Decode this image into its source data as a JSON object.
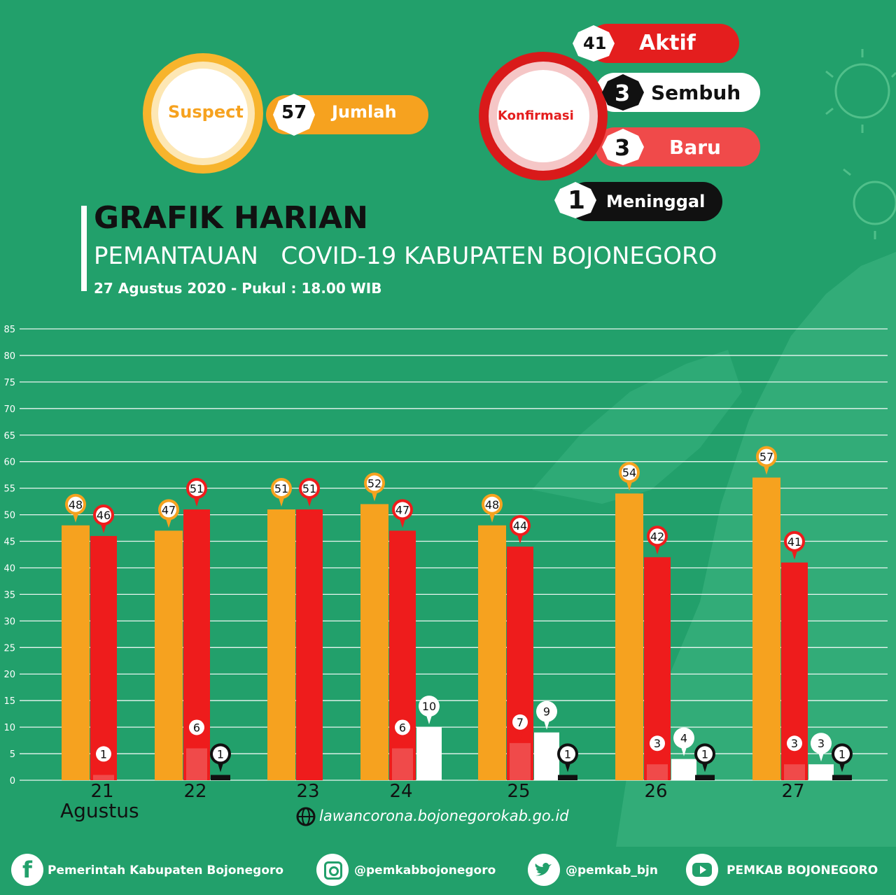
{
  "header": {
    "title": "GRAFIK HARIAN",
    "subtitle": "PEMANTAUAN   COVID-19 KABUPATEN BOJONEGORO",
    "date_line": "27 Agustus 2020 - Pukul : 18.00 WIB"
  },
  "suspect": {
    "label": "Suspect",
    "count": "57",
    "count_label": "Jumlah"
  },
  "confirmed": {
    "label": "Konfirmasi",
    "items": [
      {
        "count": "41",
        "label": "Aktif"
      },
      {
        "count": "3",
        "label": "Sembuh"
      },
      {
        "count": "3",
        "label": "Baru"
      },
      {
        "count": "1",
        "label": "Meninggal"
      }
    ]
  },
  "chart_data": {
    "type": "bar",
    "categories": [
      "21",
      "22",
      "23",
      "24",
      "25",
      "26",
      "27"
    ],
    "x_sublabel": "Agustus",
    "ylim": [
      0,
      85
    ],
    "yticks": [
      0,
      5,
      10,
      15,
      20,
      25,
      30,
      35,
      40,
      45,
      50,
      55,
      60,
      65,
      70,
      75,
      80,
      85
    ],
    "series": [
      {
        "values": [
          48,
          47,
          51,
          52,
          48,
          54,
          57
        ]
      },
      {
        "values": [
          46,
          51,
          51,
          47,
          44,
          42,
          41
        ]
      },
      {
        "values": [
          1,
          6,
          null,
          6,
          7,
          3,
          3
        ]
      },
      {
        "values": [
          null,
          null,
          null,
          10,
          9,
          4,
          3
        ]
      },
      {
        "values": [
          null,
          1,
          null,
          null,
          1,
          1,
          1
        ]
      }
    ],
    "series_colors": [
      "#f6a21f",
      "#ee1c1c",
      "#f04a4a",
      "#ffffff",
      "#111111"
    ]
  },
  "url": "lawancorona.bojonegorokab.go.id",
  "footer": {
    "facebook": "Pemerintah Kabupaten Bojonegoro",
    "instagram": "@pemkabbojonegoro",
    "twitter": "@pemkab_bjn",
    "youtube": "PEMKAB BOJONEGORO"
  }
}
